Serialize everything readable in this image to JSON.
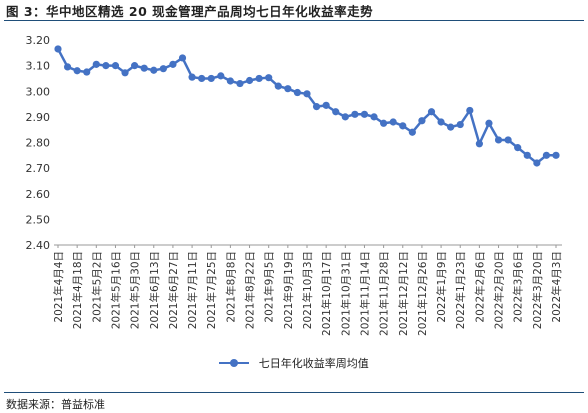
{
  "title": "图 3：华中地区精选 20 现金管理产品周均七日年化收益率走势",
  "source": "数据来源：普益标准",
  "chart_data": {
    "type": "line",
    "title": "",
    "xlabel": "",
    "ylabel": "",
    "ylim": [
      2.4,
      3.2
    ],
    "yticks": [
      "3.20",
      "3.10",
      "3.00",
      "2.90",
      "2.80",
      "2.70",
      "2.60",
      "2.50",
      "2.40"
    ],
    "grid": false,
    "legend_position": "bottom-center",
    "x_tick_labels": [
      "2021年4月4日",
      "2021年4月18日",
      "2021年5月2日",
      "2021年5月16日",
      "2021年5月30日",
      "2021年6月13日",
      "2021年6月27日",
      "2021年7月11日",
      "2021年7月25日",
      "2021年8月8日",
      "2021年8月22日",
      "2021年9月5日",
      "2021年9月19日",
      "2021年10月3日",
      "2021年10月17日",
      "2021年10月31日",
      "2021年11月14日",
      "2021年11月28日",
      "2021年12月12日",
      "2021年12月26日",
      "2022年1月9日",
      "2022年1月23日",
      "2022年2月6日",
      "2022年2月20日",
      "2022年3月6日",
      "2022年3月20日",
      "2022年4月3日"
    ],
    "series": [
      {
        "name": "七日年化收益率周均值",
        "color": "#4472c4",
        "values": [
          3.165,
          3.095,
          3.08,
          3.075,
          3.105,
          3.1,
          3.1,
          3.072,
          3.1,
          3.09,
          3.082,
          3.088,
          3.105,
          3.13,
          3.055,
          3.05,
          3.05,
          3.06,
          3.04,
          3.03,
          3.042,
          3.05,
          3.053,
          3.02,
          3.01,
          2.995,
          2.99,
          2.94,
          2.945,
          2.92,
          2.9,
          2.91,
          2.91,
          2.9,
          2.875,
          2.88,
          2.865,
          2.84,
          2.885,
          2.92,
          2.88,
          2.86,
          2.87,
          2.925,
          2.795,
          2.875,
          2.81,
          2.81,
          2.78,
          2.75,
          2.72,
          2.75,
          2.75
        ]
      }
    ]
  }
}
